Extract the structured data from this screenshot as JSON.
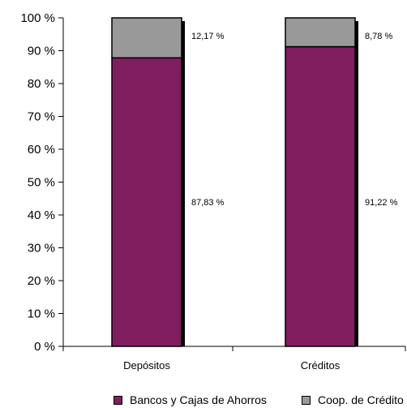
{
  "chart_data": {
    "type": "bar",
    "stacked": true,
    "percent_stacked": true,
    "categories": [
      "Depósitos",
      "Créditos"
    ],
    "series": [
      {
        "name": "Bancos y Cajas de Ahorros",
        "color": "#801e5f",
        "values": [
          87.83,
          91.22
        ],
        "labels": [
          "87,83 %",
          "91,22 %"
        ]
      },
      {
        "name": "Coop. de Crédito",
        "color": "#999999",
        "values": [
          12.17,
          8.78
        ],
        "labels": [
          "12,17 %",
          "8,78 %"
        ]
      }
    ],
    "ylim": [
      0,
      100
    ],
    "yticks": [
      0,
      10,
      20,
      30,
      40,
      50,
      60,
      70,
      80,
      90,
      100
    ],
    "ytick_labels": [
      "0 %",
      "10 %",
      "20 %",
      "30 %",
      "40 %",
      "50 %",
      "60 %",
      "70 %",
      "80 %",
      "90 %",
      "100 %"
    ],
    "grid": false,
    "legend": "bottom"
  }
}
